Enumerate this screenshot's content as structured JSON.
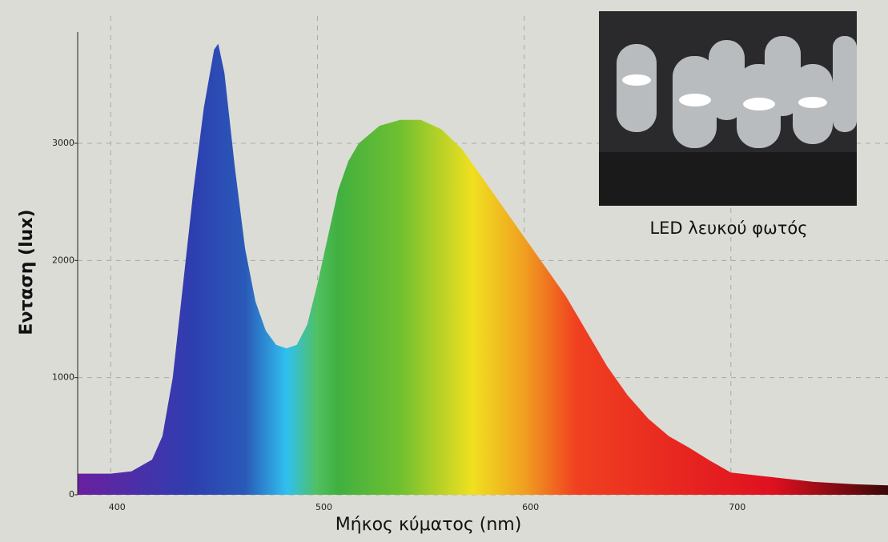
{
  "chart_data": {
    "type": "area",
    "x_label": "Μήκος κύματος (nm)",
    "y_label": "Ενταση (lux)",
    "inset_caption": "LED λευκού φωτός",
    "x": [
      384,
      400,
      410,
      420,
      425,
      430,
      435,
      440,
      445,
      450,
      452,
      455,
      460,
      465,
      470,
      475,
      480,
      485,
      490,
      495,
      500,
      505,
      510,
      515,
      520,
      530,
      540,
      550,
      560,
      570,
      580,
      590,
      600,
      610,
      620,
      630,
      640,
      650,
      660,
      670,
      680,
      690,
      700,
      720,
      740,
      760,
      776
    ],
    "values": [
      180,
      180,
      200,
      300,
      500,
      1000,
      1800,
      2600,
      3300,
      3800,
      3850,
      3600,
      2800,
      2100,
      1650,
      1400,
      1280,
      1250,
      1280,
      1450,
      1800,
      2200,
      2600,
      2850,
      3000,
      3150,
      3200,
      3200,
      3120,
      2950,
      2700,
      2450,
      2200,
      1950,
      1700,
      1400,
      1100,
      850,
      650,
      500,
      400,
      290,
      190,
      150,
      110,
      90,
      80
    ],
    "xlim": [
      384,
      776
    ],
    "ylim": [
      0,
      3950
    ],
    "xticks": [
      400,
      500,
      600,
      700
    ],
    "yticks": [
      0,
      1000,
      2000,
      3000
    ],
    "grid": true
  }
}
